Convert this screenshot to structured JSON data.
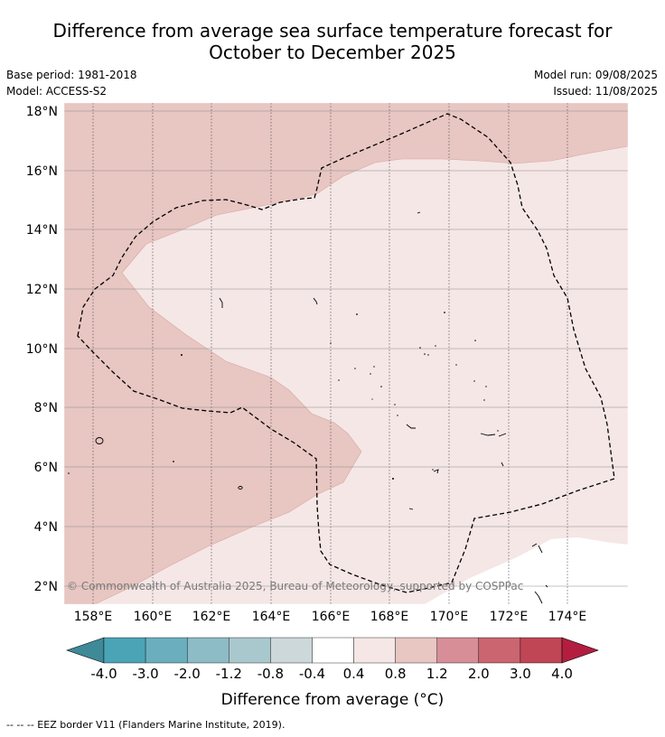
{
  "title": {
    "line1": "Difference from average sea surface temperature forecast for",
    "line2": "October to December 2025"
  },
  "meta": {
    "base_period": "Base period: 1981-2018",
    "model": "Model: ACCESS-S2",
    "model_run": "Model run: 09/08/2025",
    "issued": "Issued: 11/08/2025"
  },
  "map": {
    "lat_labels": [
      "18°N",
      "16°N",
      "14°N",
      "12°N",
      "10°N",
      "8°N",
      "6°N",
      "4°N",
      "2°N"
    ],
    "lon_labels": [
      "158°E",
      "160°E",
      "162°E",
      "164°E",
      "166°E",
      "168°E",
      "170°E",
      "172°E",
      "174°E"
    ],
    "copyright": "© Commonwealth of Australia 2025, Bureau of Meteorology, supported by COSPPac",
    "colors": {
      "warm_low": "#f5e7e6",
      "warm_mid": "#e8c6c2",
      "land_outline": "#000000"
    }
  },
  "colorbar": {
    "ticks": [
      "-4.0",
      "-3.0",
      "-2.0",
      "-1.2",
      "-0.8",
      "-0.4",
      "0.4",
      "0.8",
      "1.2",
      "2.0",
      "3.0",
      "4.0"
    ],
    "colors": [
      "#3f8a98",
      "#4aa4b6",
      "#6bafbf",
      "#8dbbc6",
      "#a9c8cd",
      "#cdd8da",
      "#ffffff",
      "#f5e7e6",
      "#e8c6c2",
      "#d88e97",
      "#cb6570",
      "#c04555",
      "#b31e40"
    ],
    "label": "Difference from average (°C)"
  },
  "footer": "--  --  -- EEZ border V11 (Flanders Marine Institute, 2019)."
}
